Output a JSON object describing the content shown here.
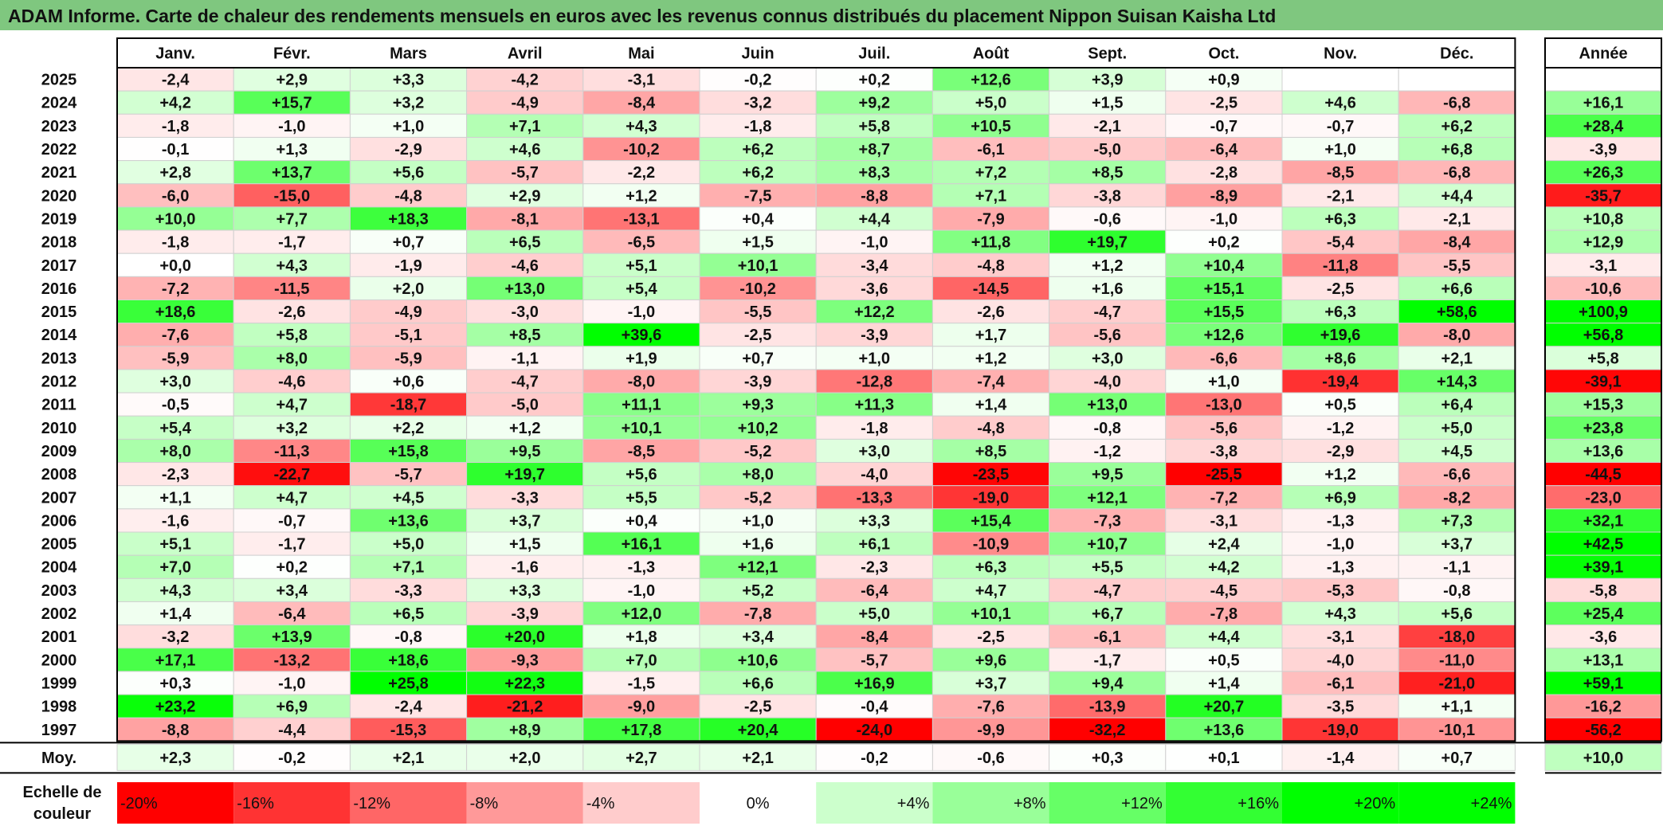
{
  "page": {
    "title": "ADAM Informe. Carte de chaleur des rendements mensuels en euros avec les revenus connus distribués du placement Nippon Suisan Kaisha Ltd"
  },
  "chart_data": {
    "type": "heatmap",
    "title": "ADAM Informe. Carte de chaleur des rendements mensuels en euros avec les revenus connus distribués du placement Nippon Suisan Kaisha Ltd",
    "columns": [
      "Janv.",
      "Févr.",
      "Mars",
      "Avril",
      "Mai",
      "Juin",
      "Juil.",
      "Août",
      "Sept.",
      "Oct.",
      "Nov.",
      "Déc."
    ],
    "year_header": "Année",
    "rows": [
      {
        "year": "2025",
        "values": [
          "-2,4",
          "+2,9",
          "+3,3",
          "-4,2",
          "-3,1",
          "-0,2",
          "+0,2",
          "+12,6",
          "+3,9",
          "+0,9",
          "",
          ""
        ],
        "annual": ""
      },
      {
        "year": "2024",
        "values": [
          "+4,2",
          "+15,7",
          "+3,2",
          "-4,9",
          "-8,4",
          "-3,2",
          "+9,2",
          "+5,0",
          "+1,5",
          "-2,5",
          "+4,6",
          "-6,8"
        ],
        "annual": "+16,1"
      },
      {
        "year": "2023",
        "values": [
          "-1,8",
          "-1,0",
          "+1,0",
          "+7,1",
          "+4,3",
          "-1,8",
          "+5,8",
          "+10,5",
          "-2,1",
          "-0,7",
          "-0,7",
          "+6,2"
        ],
        "annual": "+28,4"
      },
      {
        "year": "2022",
        "values": [
          "-0,1",
          "+1,3",
          "-2,9",
          "+4,6",
          "-10,2",
          "+6,2",
          "+8,7",
          "-6,1",
          "-5,0",
          "-6,4",
          "+1,0",
          "+6,8"
        ],
        "annual": "-3,9"
      },
      {
        "year": "2021",
        "values": [
          "+2,8",
          "+13,7",
          "+5,6",
          "-5,7",
          "-2,2",
          "+6,2",
          "+8,3",
          "+7,2",
          "+8,5",
          "-2,8",
          "-8,5",
          "-6,8"
        ],
        "annual": "+26,3"
      },
      {
        "year": "2020",
        "values": [
          "-6,0",
          "-15,0",
          "-4,8",
          "+2,9",
          "+1,2",
          "-7,5",
          "-8,8",
          "+7,1",
          "-3,8",
          "-8,9",
          "-2,1",
          "+4,4"
        ],
        "annual": "-35,7"
      },
      {
        "year": "2019",
        "values": [
          "+10,0",
          "+7,7",
          "+18,3",
          "-8,1",
          "-13,1",
          "+0,4",
          "+4,4",
          "-7,9",
          "-0,6",
          "-1,0",
          "+6,3",
          "-2,1"
        ],
        "annual": "+10,8"
      },
      {
        "year": "2018",
        "values": [
          "-1,8",
          "-1,7",
          "+0,7",
          "+6,5",
          "-6,5",
          "+1,5",
          "-1,0",
          "+11,8",
          "+19,7",
          "+0,2",
          "-5,4",
          "-8,4"
        ],
        "annual": "+12,9"
      },
      {
        "year": "2017",
        "values": [
          "+0,0",
          "+4,3",
          "-1,9",
          "-4,6",
          "+5,1",
          "+10,1",
          "-3,4",
          "-4,8",
          "+1,2",
          "+10,4",
          "-11,8",
          "-5,5"
        ],
        "annual": "-3,1"
      },
      {
        "year": "2016",
        "values": [
          "-7,2",
          "-11,5",
          "+2,0",
          "+13,0",
          "+5,4",
          "-10,2",
          "-3,6",
          "-14,5",
          "+1,6",
          "+15,1",
          "-2,5",
          "+6,6"
        ],
        "annual": "-10,6"
      },
      {
        "year": "2015",
        "values": [
          "+18,6",
          "-2,6",
          "-4,9",
          "-3,0",
          "-1,0",
          "-5,5",
          "+12,2",
          "-2,6",
          "-4,7",
          "+15,5",
          "+6,3",
          "+58,6"
        ],
        "annual": "+100,9"
      },
      {
        "year": "2014",
        "values": [
          "-7,6",
          "+5,8",
          "-5,1",
          "+8,5",
          "+39,6",
          "-2,5",
          "-3,9",
          "+1,7",
          "-5,6",
          "+12,6",
          "+19,6",
          "-8,0"
        ],
        "annual": "+56,8"
      },
      {
        "year": "2013",
        "values": [
          "-5,9",
          "+8,0",
          "-5,9",
          "-1,1",
          "+1,9",
          "+0,7",
          "+1,0",
          "+1,2",
          "+3,0",
          "-6,6",
          "+8,6",
          "+2,1"
        ],
        "annual": "+5,8"
      },
      {
        "year": "2012",
        "values": [
          "+3,0",
          "-4,6",
          "+0,6",
          "-4,7",
          "-8,0",
          "-3,9",
          "-12,8",
          "-7,4",
          "-4,0",
          "+1,0",
          "-19,4",
          "+14,3"
        ],
        "annual": "-39,1"
      },
      {
        "year": "2011",
        "values": [
          "-0,5",
          "+4,7",
          "-18,7",
          "-5,0",
          "+11,1",
          "+9,3",
          "+11,3",
          "+1,4",
          "+13,0",
          "-13,0",
          "+0,5",
          "+6,4"
        ],
        "annual": "+15,3"
      },
      {
        "year": "2010",
        "values": [
          "+5,4",
          "+3,2",
          "+2,2",
          "+1,2",
          "+10,1",
          "+10,2",
          "-1,8",
          "-4,8",
          "-0,8",
          "-5,6",
          "-1,2",
          "+5,0"
        ],
        "annual": "+23,8"
      },
      {
        "year": "2009",
        "values": [
          "+8,0",
          "-11,3",
          "+15,8",
          "+9,5",
          "-8,5",
          "-5,2",
          "+3,0",
          "+8,5",
          "-1,2",
          "-3,8",
          "-2,9",
          "+4,5"
        ],
        "annual": "+13,6"
      },
      {
        "year": "2008",
        "values": [
          "-2,3",
          "-22,7",
          "-5,7",
          "+19,7",
          "+5,6",
          "+8,0",
          "-4,0",
          "-23,5",
          "+9,5",
          "-25,5",
          "+1,2",
          "-6,6"
        ],
        "annual": "-44,5"
      },
      {
        "year": "2007",
        "values": [
          "+1,1",
          "+4,7",
          "+4,5",
          "-3,3",
          "+5,5",
          "-5,2",
          "-13,3",
          "-19,0",
          "+12,1",
          "-7,2",
          "+6,9",
          "-8,2"
        ],
        "annual": "-23,0"
      },
      {
        "year": "2006",
        "values": [
          "-1,6",
          "-0,7",
          "+13,6",
          "+3,7",
          "+0,4",
          "+1,0",
          "+3,3",
          "+15,4",
          "-7,3",
          "-3,1",
          "-1,3",
          "+7,3"
        ],
        "annual": "+32,1"
      },
      {
        "year": "2005",
        "values": [
          "+5,1",
          "-1,7",
          "+5,0",
          "+1,5",
          "+16,1",
          "+1,6",
          "+6,1",
          "-10,9",
          "+10,7",
          "+2,4",
          "-1,0",
          "+3,7"
        ],
        "annual": "+42,5"
      },
      {
        "year": "2004",
        "values": [
          "+7,0",
          "+0,2",
          "+7,1",
          "-1,6",
          "-1,3",
          "+12,1",
          "-2,3",
          "+6,3",
          "+5,5",
          "+4,2",
          "-1,3",
          "-1,1"
        ],
        "annual": "+39,1"
      },
      {
        "year": "2003",
        "values": [
          "+4,3",
          "+3,4",
          "-3,3",
          "+3,3",
          "-1,0",
          "+5,2",
          "-6,4",
          "+4,7",
          "-4,7",
          "-4,5",
          "-5,3",
          "-0,8"
        ],
        "annual": "-5,8"
      },
      {
        "year": "2002",
        "values": [
          "+1,4",
          "-6,4",
          "+6,5",
          "-3,9",
          "+12,0",
          "-7,8",
          "+5,0",
          "+10,1",
          "+6,7",
          "-7,8",
          "+4,3",
          "+5,6"
        ],
        "annual": "+25,4"
      },
      {
        "year": "2001",
        "values": [
          "-3,2",
          "+13,9",
          "-0,8",
          "+20,0",
          "+1,8",
          "+3,4",
          "-8,4",
          "-2,5",
          "-6,1",
          "+4,4",
          "-3,1",
          "-18,0"
        ],
        "annual": "-3,6"
      },
      {
        "year": "2000",
        "values": [
          "+17,1",
          "-13,2",
          "+18,6",
          "-9,3",
          "+7,0",
          "+10,6",
          "-5,7",
          "+9,6",
          "-1,7",
          "+0,5",
          "-4,0",
          "-11,0"
        ],
        "annual": "+13,1"
      },
      {
        "year": "1999",
        "values": [
          "+0,3",
          "-1,0",
          "+25,8",
          "+22,3",
          "-1,5",
          "+6,6",
          "+16,9",
          "+3,7",
          "+9,4",
          "+1,4",
          "-6,1",
          "-21,0"
        ],
        "annual": "+59,1"
      },
      {
        "year": "1998",
        "values": [
          "+23,2",
          "+6,9",
          "-2,4",
          "-21,2",
          "-9,0",
          "-2,5",
          "-0,4",
          "-7,6",
          "-13,9",
          "+20,7",
          "-3,5",
          "+1,1"
        ],
        "annual": "-16,2"
      },
      {
        "year": "1997",
        "values": [
          "-8,8",
          "-4,4",
          "-15,3",
          "+8,9",
          "+17,8",
          "+20,4",
          "-24,0",
          "-9,9",
          "-32,2",
          "+13,6",
          "-19,0",
          "-10,1"
        ],
        "annual": "-56,2"
      }
    ],
    "average": {
      "label": "Moy.",
      "values": [
        "+2,3",
        "-0,2",
        "+2,1",
        "+2,0",
        "+2,7",
        "+2,1",
        "-0,2",
        "-0,6",
        "+0,3",
        "+0,1",
        "-1,4",
        "+0,7"
      ],
      "annual": "+10,0"
    },
    "legend": {
      "label_line1": "Echelle de",
      "label_line2": "couleur",
      "steps": [
        {
          "label": "-20%",
          "value": -20
        },
        {
          "label": "-16%",
          "value": -16
        },
        {
          "label": "-12%",
          "value": -12
        },
        {
          "label": "-8%",
          "value": -8
        },
        {
          "label": "-4%",
          "value": -4
        },
        {
          "label": "0%",
          "value": 0
        },
        {
          "label": "+4%",
          "value": 4
        },
        {
          "label": "+8%",
          "value": 8
        },
        {
          "label": "+12%",
          "value": 12
        },
        {
          "label": "+16%",
          "value": 16
        },
        {
          "label": "+20%",
          "value": 20
        },
        {
          "label": "+24%",
          "value": 24
        }
      ]
    },
    "colors": {
      "negative_max": "#ff0000",
      "neutral": "#ffffff",
      "positive_max": "#00ff00",
      "title_bar": "#7fc77f"
    }
  }
}
